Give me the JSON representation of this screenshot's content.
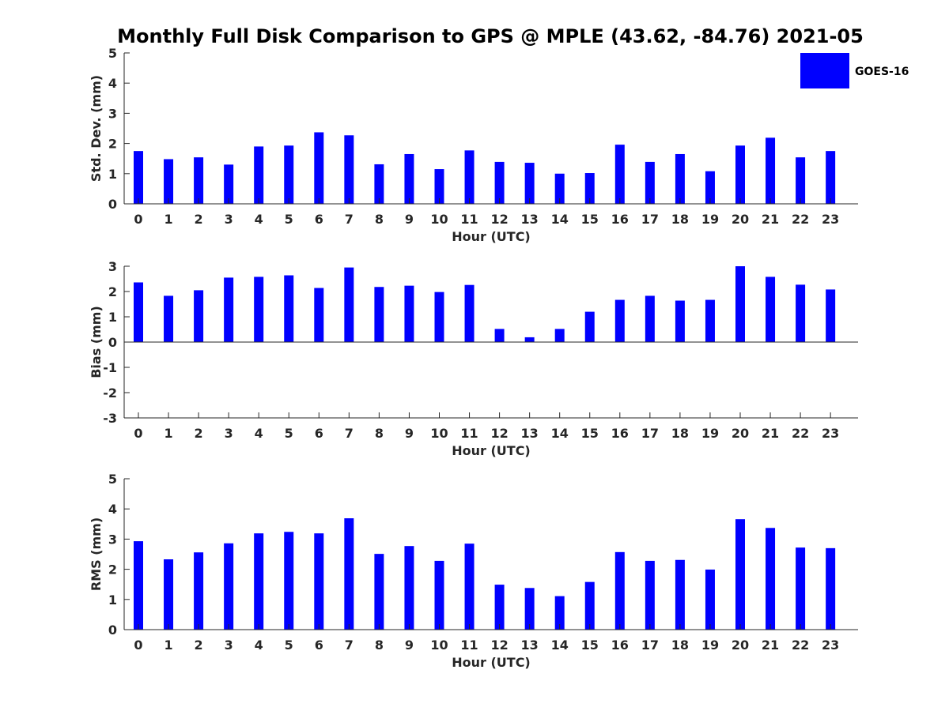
{
  "title": "Monthly Full Disk Comparison to GPS @ MPLE (43.62, -84.76) 2021-05",
  "legend": {
    "label": "GOES-16",
    "color": "#0000ff"
  },
  "chart_data": [
    {
      "type": "bar",
      "name": "std-dev",
      "categories": [
        "0",
        "1",
        "2",
        "3",
        "4",
        "5",
        "6",
        "7",
        "8",
        "9",
        "10",
        "11",
        "12",
        "13",
        "14",
        "15",
        "16",
        "17",
        "18",
        "19",
        "20",
        "21",
        "22",
        "23"
      ],
      "values": [
        1.75,
        1.48,
        1.54,
        1.3,
        1.9,
        1.93,
        2.37,
        2.27,
        1.31,
        1.65,
        1.15,
        1.77,
        1.39,
        1.36,
        1.0,
        1.02,
        1.96,
        1.39,
        1.65,
        1.08,
        1.93,
        2.19,
        1.54,
        1.75
      ],
      "xlabel": "Hour (UTC)",
      "ylabel": "Std. Dev. (mm)",
      "ylim": [
        0,
        5
      ],
      "yticks": [
        "0",
        "1",
        "2",
        "3",
        "4",
        "5"
      ],
      "color": "#0000ff"
    },
    {
      "type": "bar",
      "name": "bias",
      "categories": [
        "0",
        "1",
        "2",
        "3",
        "4",
        "5",
        "6",
        "7",
        "8",
        "9",
        "10",
        "11",
        "12",
        "13",
        "14",
        "15",
        "16",
        "17",
        "18",
        "19",
        "20",
        "21",
        "22",
        "23"
      ],
      "values": [
        2.36,
        1.83,
        2.05,
        2.55,
        2.58,
        2.64,
        2.14,
        2.95,
        2.18,
        2.23,
        1.98,
        2.26,
        0.52,
        0.19,
        0.52,
        1.2,
        1.67,
        1.83,
        1.64,
        1.67,
        3.0,
        2.58,
        2.27,
        2.08
      ],
      "xlabel": "Hour (UTC)",
      "ylabel": "Bias (mm)",
      "ylim": [
        -3,
        3
      ],
      "yticks": [
        "-3",
        "-2",
        "-1",
        "0",
        "1",
        "2",
        "3"
      ],
      "color": "#0000ff"
    },
    {
      "type": "bar",
      "name": "rms",
      "categories": [
        "0",
        "1",
        "2",
        "3",
        "4",
        "5",
        "6",
        "7",
        "8",
        "9",
        "10",
        "11",
        "12",
        "13",
        "14",
        "15",
        "16",
        "17",
        "18",
        "19",
        "20",
        "21",
        "22",
        "23"
      ],
      "values": [
        2.93,
        2.33,
        2.56,
        2.86,
        3.19,
        3.24,
        3.19,
        3.69,
        2.51,
        2.77,
        2.28,
        2.85,
        1.49,
        1.38,
        1.11,
        1.58,
        2.57,
        2.28,
        2.31,
        1.99,
        3.66,
        3.37,
        2.72,
        2.7
      ],
      "xlabel": "Hour (UTC)",
      "ylabel": "RMS (mm)",
      "ylim": [
        0,
        5
      ],
      "yticks": [
        "0",
        "1",
        "2",
        "3",
        "4",
        "5"
      ],
      "color": "#0000ff"
    }
  ]
}
